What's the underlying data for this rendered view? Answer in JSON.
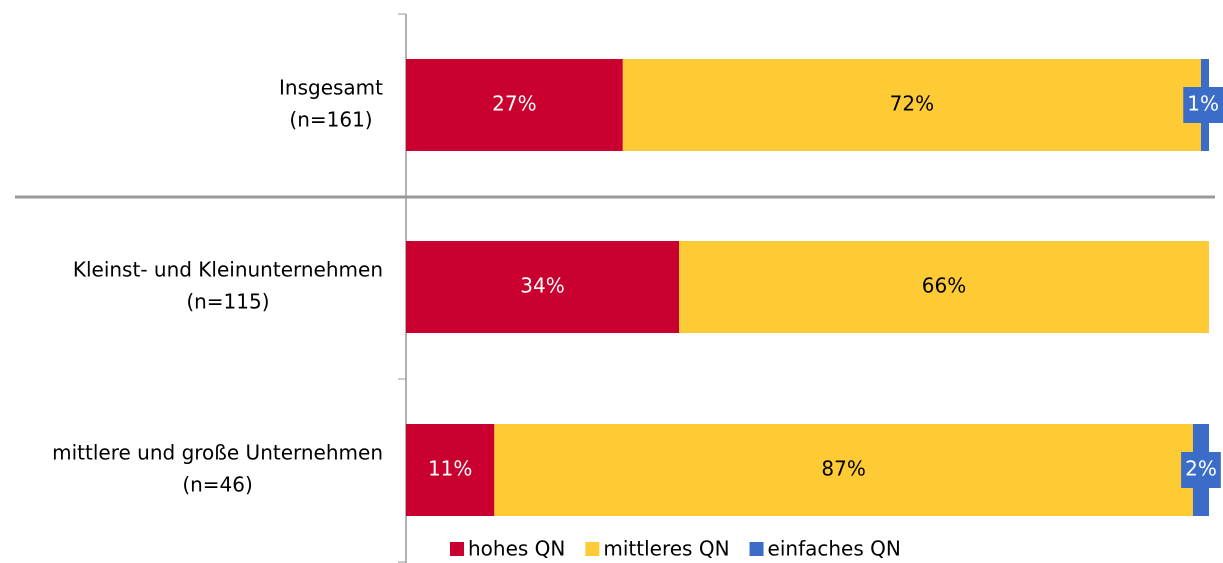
{
  "chart_data": {
    "type": "stacked-bar-horizontal",
    "categories": [
      [
        "Insgesamt",
        "(n=161)"
      ],
      [
        "Kleinst- und Kleinunternehmen",
        "(n=115)"
      ],
      [
        "mittlere und große Unternehmen",
        "(n=46)"
      ]
    ],
    "xlim": [
      0,
      100
    ],
    "series": [
      {
        "name": "hohes QN",
        "color": "#c9002f",
        "label_color": "#ffffff",
        "values": [
          27,
          34,
          11
        ],
        "value_labels": [
          "27%",
          "34%",
          "11%"
        ]
      },
      {
        "name": "mittleres QN",
        "color": "#ffcb35",
        "label_color": "#000000",
        "values": [
          72,
          66,
          87
        ],
        "value_labels": [
          "72%",
          "66%",
          "87%"
        ]
      },
      {
        "name": "einfaches QN",
        "color": "#3a6cc8",
        "label_color": "#ffffff",
        "values": [
          1,
          0,
          2
        ],
        "value_labels": [
          "1%",
          null,
          "2%"
        ]
      }
    ],
    "legend": "bottom"
  }
}
